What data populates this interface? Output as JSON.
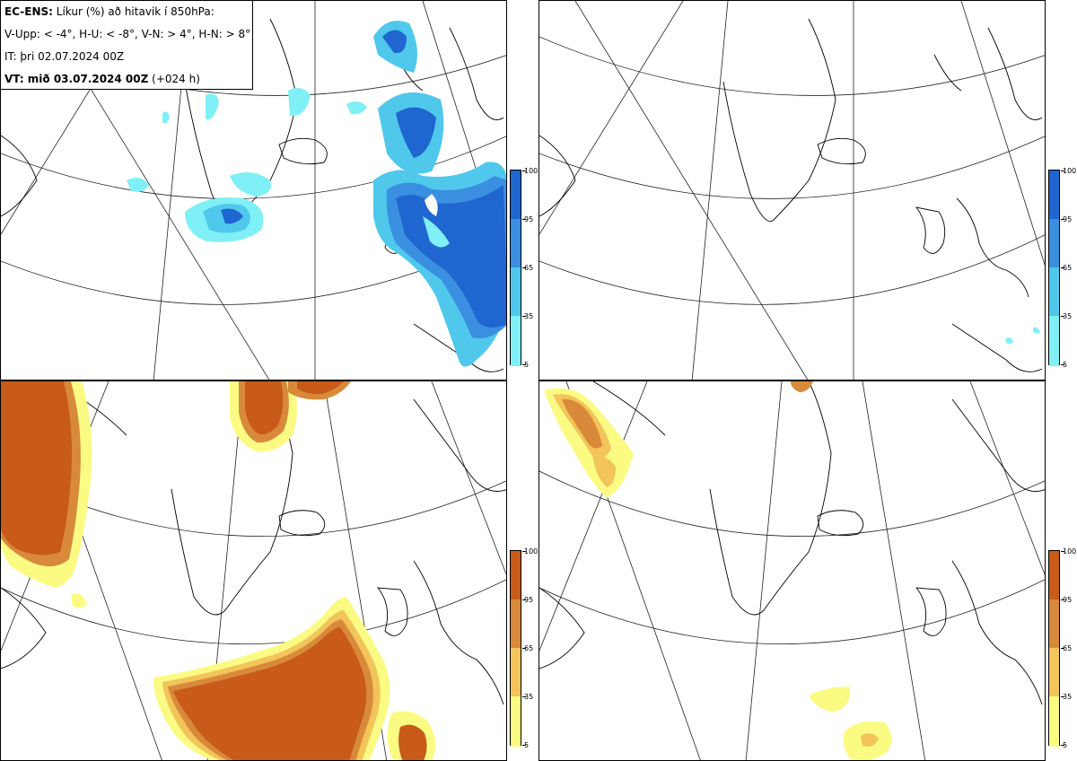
{
  "header": {
    "line1_bold": "EC-ENS:",
    "line1_rest": "Líkur (%) að hitavik í 850hPa:",
    "line2": "V-Upp: < -4°, H-U: < -8°, V-N: > 4°, H-N: > 8°",
    "line3": "IT: þri 02.07.2024 00Z",
    "line4_bold": "VT: mið 03.07.2024 00Z",
    "line4_rest": "(+024 h)"
  },
  "colorbar_labels": [
    "100",
    "95",
    "65",
    "35",
    "5"
  ],
  "colors": {
    "blue_scale": [
      "#7ff0f5",
      "#4fc8ec",
      "#3a8fe0",
      "#1f66d0"
    ],
    "orange_scale": [
      "#fbfb84",
      "#f2c45a",
      "#d88a3a",
      "#c85a1a"
    ]
  },
  "panels": [
    {
      "id": "top-left",
      "variable": "V-Upp",
      "scale": "blue"
    },
    {
      "id": "top-right",
      "variable": "H-U",
      "scale": "blue"
    },
    {
      "id": "bottom-left",
      "variable": "V-N",
      "scale": "orange"
    },
    {
      "id": "bottom-right",
      "variable": "H-N",
      "scale": "orange"
    }
  ]
}
